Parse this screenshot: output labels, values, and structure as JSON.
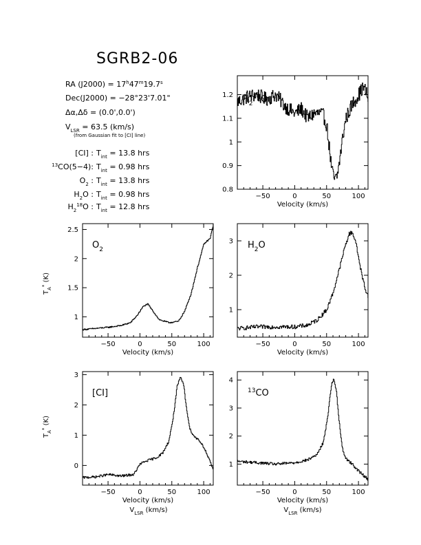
{
  "title": "SGRB2-06",
  "info": {
    "ra": "RA (J2000) = 17h47m19.7s",
    "dec": "Dec(J2000) = −28°23'7.01\"",
    "offset": "Δα,Δδ = (0.0',0.0')",
    "vlsr": "V_LSR = 63.5 (km/s)",
    "vlsr_note": "(from Gaussian fit to [CI] line)",
    "integrations": [
      {
        "line": "[CI]",
        "tint": "13.8 hrs"
      },
      {
        "line": "13CO(5−4)",
        "tint": "0.98 hrs"
      },
      {
        "line": "O2",
        "tint": "13.8 hrs"
      },
      {
        "line": "H2O",
        "tint": "0.98 hrs"
      },
      {
        "line": "H2 18O",
        "tint": "12.8 hrs"
      }
    ]
  },
  "chart_data": [
    {
      "type": "line",
      "panel": "H2 18O",
      "label": "H2 18O",
      "xlabel": "Velocity (km/s)",
      "ylabel": "",
      "xlim": [
        -90,
        115
      ],
      "ylim": [
        0.8,
        1.28
      ],
      "xticks": [
        -50,
        0,
        50,
        100
      ],
      "yticks": [
        0.8,
        0.9,
        1,
        1.1,
        1.2
      ],
      "ytick_labels": [
        "0.8",
        "0.9",
        "1",
        "1.1",
        "1.2"
      ],
      "noise": 0.03,
      "x": [
        -90,
        -75,
        -60,
        -45,
        -30,
        -15,
        0,
        10,
        20,
        30,
        40,
        45,
        50,
        55,
        58,
        62,
        66,
        70,
        75,
        80,
        90,
        100,
        107,
        112,
        115
      ],
      "y": [
        1.17,
        1.19,
        1.2,
        1.18,
        1.2,
        1.15,
        1.12,
        1.14,
        1.1,
        1.12,
        1.12,
        1.11,
        1.07,
        0.95,
        0.88,
        0.84,
        0.85,
        0.92,
        1.02,
        1.1,
        1.16,
        1.2,
        1.23,
        1.21,
        1.17
      ]
    },
    {
      "type": "line",
      "panel": "O2",
      "label": "O2",
      "xlabel": "Velocity (km/s)",
      "ylabel": "TA* (K)",
      "xlim": [
        -90,
        115
      ],
      "ylim": [
        0.65,
        2.6
      ],
      "xticks": [
        -50,
        0,
        50,
        100
      ],
      "yticks": [
        1,
        1.5,
        2,
        2.5
      ],
      "ytick_labels": [
        "1",
        "1.5",
        "2",
        "2.5"
      ],
      "noise": 0.012,
      "x": [
        -90,
        -70,
        -50,
        -30,
        -15,
        -5,
        5,
        12,
        20,
        30,
        45,
        60,
        70,
        80,
        90,
        100,
        110,
        115
      ],
      "y": [
        0.78,
        0.8,
        0.82,
        0.85,
        0.9,
        1.02,
        1.18,
        1.22,
        1.1,
        0.95,
        0.9,
        0.92,
        1.1,
        1.4,
        1.85,
        2.25,
        2.35,
        2.6
      ]
    },
    {
      "type": "line",
      "panel": "H2O",
      "label": "H2O",
      "xlabel": "Velocity (km/s)",
      "ylabel": "",
      "xlim": [
        -90,
        115
      ],
      "ylim": [
        0.2,
        3.5
      ],
      "xticks": [
        -50,
        0,
        50,
        100
      ],
      "yticks": [
        1,
        2,
        3
      ],
      "ytick_labels": [
        "1",
        "2",
        "3"
      ],
      "noise": 0.06,
      "x": [
        -90,
        -60,
        -30,
        0,
        20,
        35,
        50,
        60,
        70,
        78,
        85,
        90,
        95,
        100,
        105,
        112,
        115
      ],
      "y": [
        0.45,
        0.5,
        0.5,
        0.5,
        0.55,
        0.7,
        1.0,
        1.5,
        2.2,
        2.8,
        3.2,
        3.25,
        3.0,
        2.5,
        2.0,
        1.5,
        1.4
      ]
    },
    {
      "type": "line",
      "panel": "[CI]",
      "label": "[CI]",
      "xlabel": "Velocity (km/s)",
      "ylabel": "TA* (K)",
      "xlim": [
        -90,
        115
      ],
      "ylim": [
        -0.65,
        3.1
      ],
      "xticks": [
        -50,
        0,
        50,
        100
      ],
      "yticks": [
        0,
        1,
        2,
        3
      ],
      "ytick_labels": [
        "0",
        "1",
        "2",
        "3"
      ],
      "noise": 0.04,
      "x": [
        -90,
        -70,
        -50,
        -30,
        -10,
        0,
        10,
        25,
        35,
        45,
        52,
        58,
        63,
        68,
        72,
        78,
        85,
        92,
        100,
        108,
        115
      ],
      "y": [
        -0.4,
        -0.38,
        -0.3,
        -0.35,
        -0.3,
        0.05,
        0.15,
        0.25,
        0.4,
        0.8,
        1.6,
        2.6,
        2.9,
        2.7,
        2.0,
        1.2,
        0.95,
        0.85,
        0.6,
        0.2,
        -0.15
      ]
    },
    {
      "type": "line",
      "panel": "13CO",
      "label": "13CO",
      "xlabel": "Velocity (km/s)",
      "ylabel": "",
      "xlim": [
        -90,
        115
      ],
      "ylim": [
        0.25,
        4.3
      ],
      "xticks": [
        -50,
        0,
        50,
        100
      ],
      "yticks": [
        1,
        2,
        3,
        4
      ],
      "ytick_labels": [
        "1",
        "2",
        "3",
        "4"
      ],
      "noise": 0.05,
      "x": [
        -90,
        -60,
        -30,
        0,
        20,
        35,
        45,
        52,
        57,
        61,
        65,
        70,
        75,
        80,
        90,
        100,
        110,
        115
      ],
      "y": [
        1.1,
        1.05,
        1.0,
        1.05,
        1.15,
        1.35,
        1.8,
        2.8,
        3.8,
        4.05,
        3.6,
        2.4,
        1.5,
        1.2,
        1.0,
        0.75,
        0.55,
        0.45
      ]
    }
  ],
  "bottom_xlabel": "VLSR (km/s)"
}
